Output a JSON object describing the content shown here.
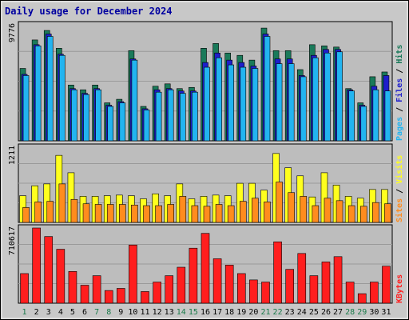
{
  "chart_data": {
    "type": "bar",
    "title": "Daily usage for December 2024",
    "days": [
      "1",
      "2",
      "3",
      "4",
      "5",
      "6",
      "7",
      "8",
      "9",
      "10",
      "11",
      "12",
      "13",
      "14",
      "15",
      "16",
      "17",
      "18",
      "19",
      "20",
      "21",
      "22",
      "23",
      "24",
      "25",
      "26",
      "27",
      "28",
      "29",
      "30",
      "31"
    ],
    "weekend_days": [
      "1",
      "7",
      "8",
      "14",
      "15",
      "21",
      "22",
      "28",
      "29"
    ],
    "panels": [
      {
        "id": "hits",
        "ymax_label": "9776",
        "ymax": 9776,
        "right_labels": [
          "Pages",
          "Files",
          "Hits"
        ],
        "series": [
          {
            "name": "Hits",
            "color": "#1a7a5a",
            "values": [
              6100,
              8500,
              9300,
              7800,
              4700,
              4300,
              4700,
              3200,
              3500,
              7600,
              2900,
              4600,
              4800,
              4400,
              4500,
              7800,
              8200,
              7400,
              7200,
              6800,
              9500,
              7600,
              7600,
              6000,
              8100,
              8000,
              7900,
              4400,
              3200,
              5400,
              5800
            ]
          },
          {
            "name": "Files",
            "color": "#1e1ecc",
            "values": [
              5600,
              8100,
              9000,
              7300,
              4400,
              4000,
              4400,
              3000,
              3300,
              6900,
              2700,
              4300,
              4400,
              4200,
              4200,
              6600,
              7400,
              6800,
              6600,
              6300,
              9000,
              6900,
              6900,
              5500,
              7200,
              7700,
              7700,
              4300,
              3000,
              4600,
              5500
            ]
          },
          {
            "name": "Pages",
            "color": "#22b4f0",
            "values": [
              5500,
              8000,
              8800,
              7200,
              4300,
              3900,
              4300,
              2900,
              3200,
              6800,
              2600,
              4100,
              4300,
              4000,
              4100,
              6200,
              7000,
              6400,
              6200,
              6100,
              8800,
              6500,
              6500,
              5400,
              7000,
              7400,
              7500,
              4200,
              2900,
              4300,
              4200
            ]
          }
        ]
      },
      {
        "id": "visits",
        "ymax_label": "1211",
        "ymax": 1211,
        "right_labels": [
          "Sites",
          "Visits"
        ],
        "series": [
          {
            "name": "Visits",
            "color": "#ffff1e",
            "values": [
              430,
              590,
              620,
              1080,
              800,
              420,
              420,
              430,
              440,
              430,
              380,
              460,
              430,
              620,
              380,
              420,
              440,
              430,
              630,
              630,
              520,
              1110,
              880,
              750,
              410,
              800,
              600,
              420,
              390,
              530,
              530
            ]
          },
          {
            "name": "Sites",
            "color": "#ff8c1e",
            "values": [
              240,
              330,
              340,
              620,
              370,
              300,
              290,
              290,
              290,
              280,
              270,
              270,
              290,
              420,
              270,
              260,
              290,
              270,
              340,
              390,
              330,
              650,
              480,
              420,
              270,
              390,
              350,
              270,
              260,
              320,
              300
            ]
          }
        ]
      },
      {
        "id": "kbytes",
        "ymax_label": "710617",
        "ymax": 710617,
        "right_labels": [
          "KBytes"
        ],
        "series": [
          {
            "name": "KBytes",
            "color": "#ff1e1e",
            "values": [
              280000,
              710617,
              630000,
              510000,
              300000,
              170000,
              260000,
              120000,
              140000,
              550000,
              110000,
              200000,
              260000,
              340000,
              520000,
              660000,
              420000,
              360000,
              280000,
              220000,
              200000,
              580000,
              320000,
              470000,
              260000,
              390000,
              440000,
              200000,
              90000,
              200000,
              350000
            ]
          }
        ]
      }
    ]
  }
}
